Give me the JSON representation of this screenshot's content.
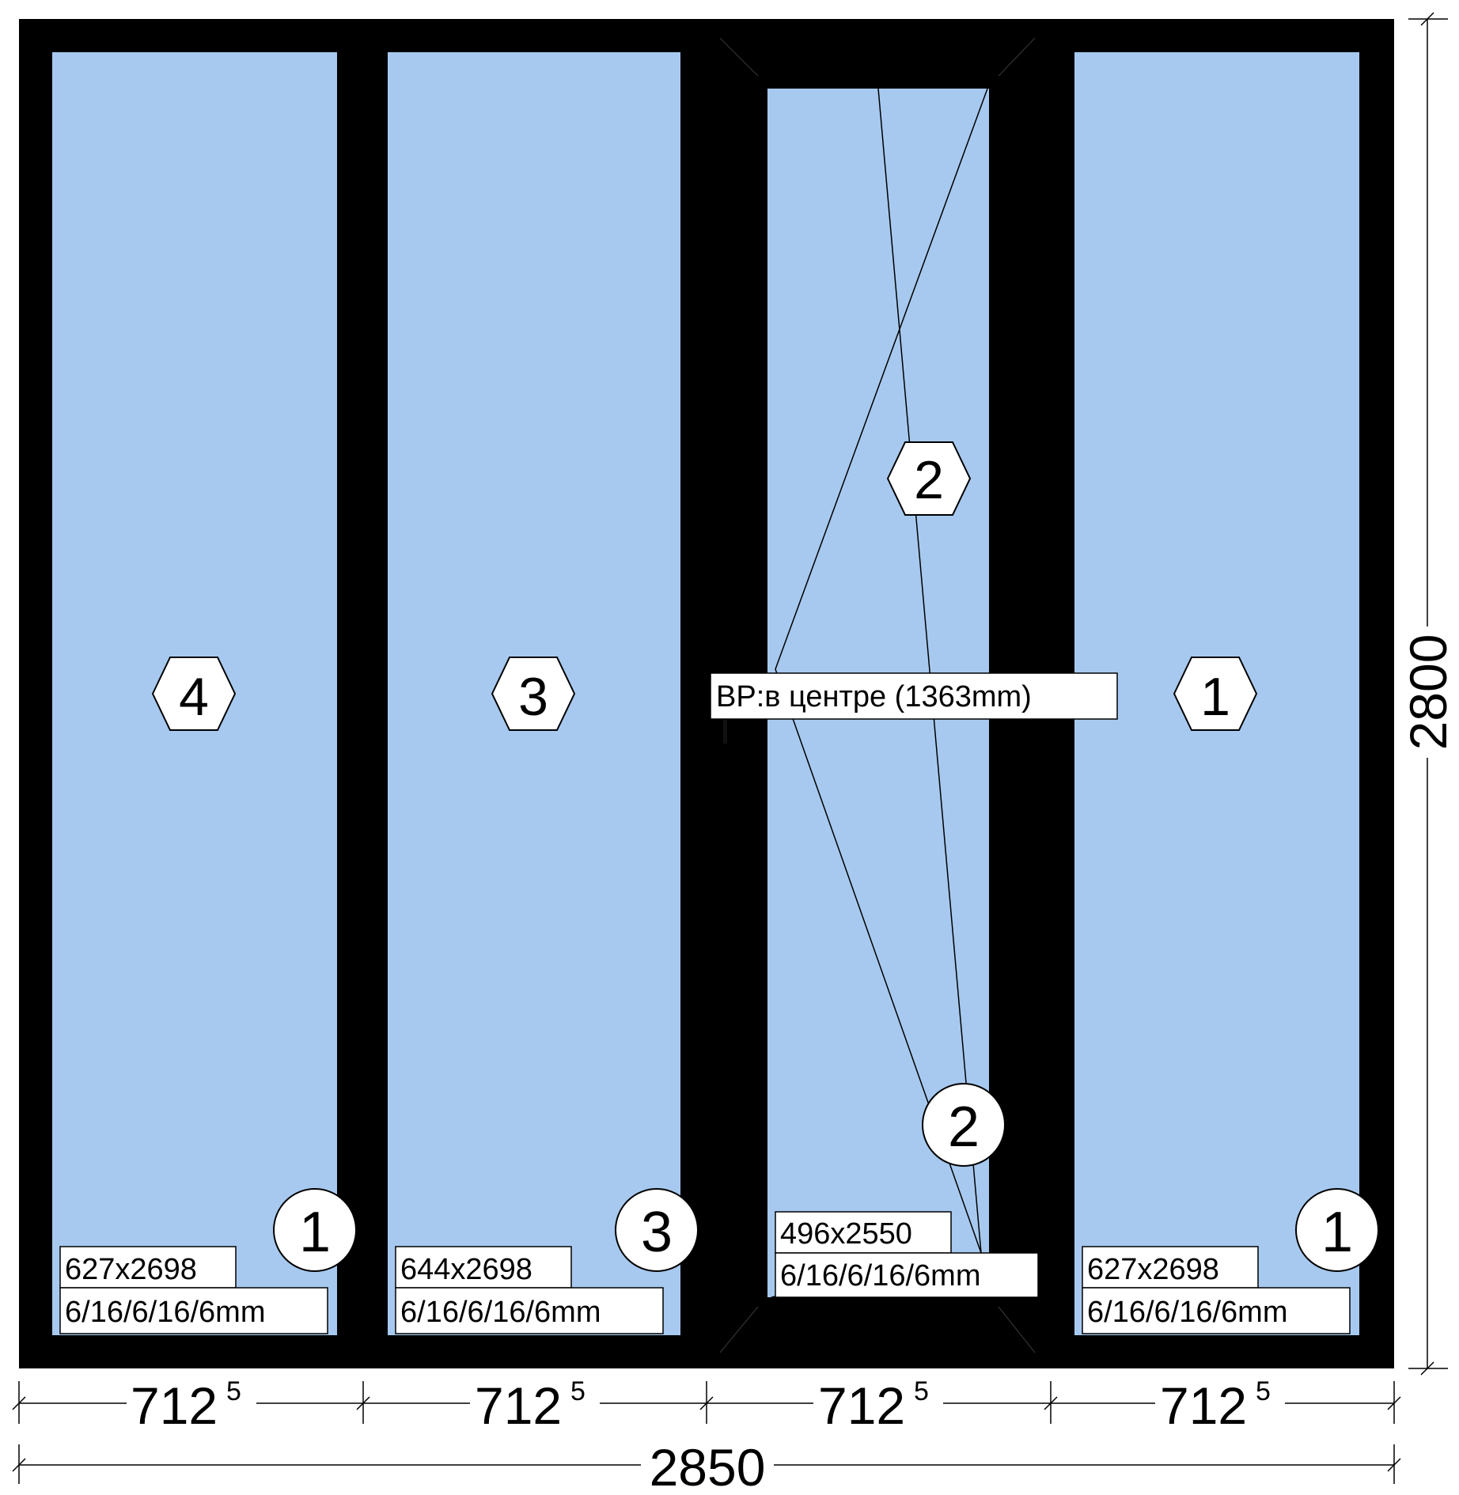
{
  "colors": {
    "frame": "#000000",
    "glass": "#a7c9ef",
    "background": "#ffffff",
    "label_bg": "#ffffff"
  },
  "panels": [
    {
      "id": "panel-1",
      "hex_marker": "4",
      "circle_marker": "1",
      "glass_size": "627x2698",
      "glass_formula": "6/16/6/16/6mm",
      "opening": "fixed"
    },
    {
      "id": "panel-2",
      "hex_marker": "3",
      "circle_marker": "3",
      "glass_size": "644x2698",
      "glass_formula": "6/16/6/16/6mm",
      "opening": "fixed"
    },
    {
      "id": "panel-3",
      "hex_marker": "2",
      "circle_marker": "2",
      "glass_size": "496x2550",
      "glass_formula": "6/16/6/16/6mm",
      "opening": "tilt-and-turn"
    },
    {
      "id": "panel-4",
      "hex_marker": "1",
      "circle_marker": "1",
      "glass_size": "627x2698",
      "glass_formula": "6/16/6/16/6mm",
      "opening": "fixed"
    }
  ],
  "handle_note": "BP:в центре (1363mm)",
  "dimensions": {
    "section_widths": [
      {
        "main": "712",
        "sup": "5"
      },
      {
        "main": "712",
        "sup": "5"
      },
      {
        "main": "712",
        "sup": "5"
      },
      {
        "main": "712",
        "sup": "5"
      }
    ],
    "total_width": "2850",
    "total_height": "2800"
  }
}
